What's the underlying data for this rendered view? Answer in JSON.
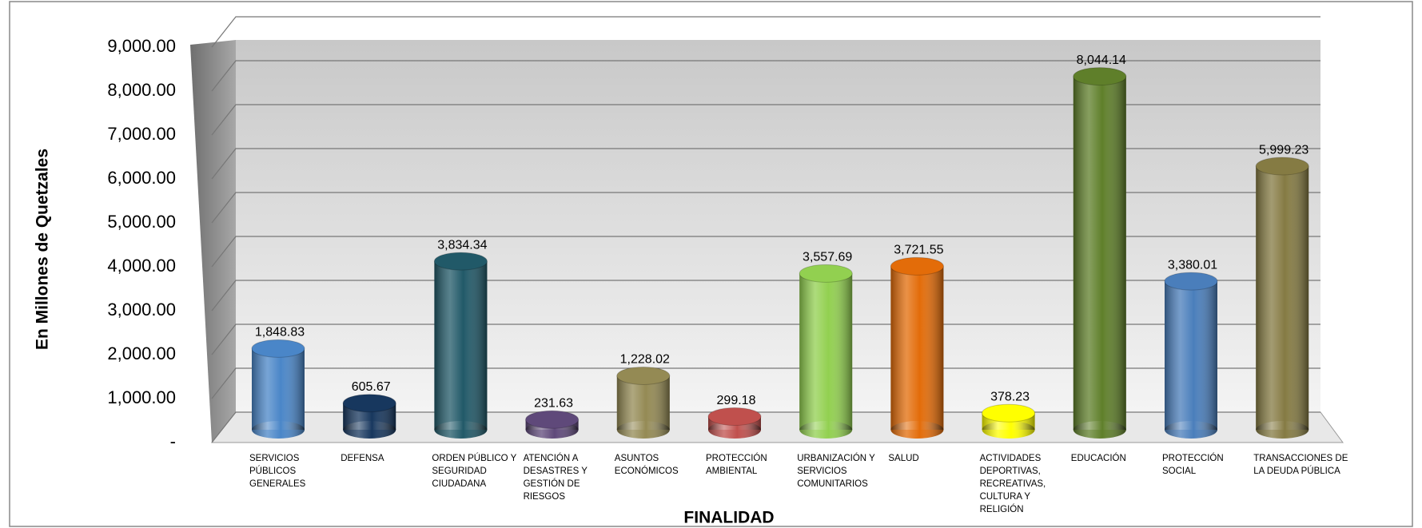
{
  "chart_data": {
    "type": "bar",
    "y_label": "En Millones de Quetzales",
    "x_label": "FINALIDAD",
    "categories": [
      "SERVICIOS PÚBLICOS GENERALES",
      "DEFENSA",
      "ORDEN PÚBLICO Y SEGURIDAD CIUDADANA",
      "ATENCIÓN A DESASTRES Y GESTIÓN DE RIESGOS",
      "ASUNTOS ECONÓMICOS",
      "PROTECCIÓN AMBIENTAL",
      "URBANIZACIÓN Y SERVICIOS COMUNITARIOS",
      "SALUD",
      "ACTIVIDADES DEPORTIVAS, RECREATIVAS, CULTURA Y RELIGIÓN",
      "EDUCACIÓN",
      "PROTECCIÓN SOCIAL",
      "TRANSACCIONES DE LA DEUDA PÚBLICA"
    ],
    "values": [
      1848.83,
      605.67,
      3834.34,
      231.63,
      1228.02,
      299.18,
      3557.69,
      3721.55,
      378.23,
      8044.14,
      3380.01,
      5999.23
    ],
    "value_labels": [
      "1,848.83",
      "605.67",
      "3,834.34",
      "231.63",
      "1,228.02",
      "299.18",
      "3,557.69",
      "3,721.55",
      "378.23",
      "8,044.14",
      "3,380.01",
      "5,999.23"
    ],
    "colors": [
      "#4a86c8",
      "#17375e",
      "#215968",
      "#5f497a",
      "#948a54",
      "#c0504d",
      "#92d050",
      "#e36c09",
      "#ffff00",
      "#5f7f2a",
      "#4a7ebb",
      "#857b43"
    ],
    "ylim": [
      0,
      9000
    ],
    "yticks": [
      {
        "value": 0,
        "label": "-"
      },
      {
        "value": 1000,
        "label": "1,000.00"
      },
      {
        "value": 2000,
        "label": "2,000.00"
      },
      {
        "value": 3000,
        "label": "3,000.00"
      },
      {
        "value": 4000,
        "label": "4,000.00"
      },
      {
        "value": 5000,
        "label": "5,000.00"
      },
      {
        "value": 6000,
        "label": "6,000.00"
      },
      {
        "value": 7000,
        "label": "7,000.00"
      },
      {
        "value": 8000,
        "label": "8,000.00"
      },
      {
        "value": 9000,
        "label": "9,000.00"
      }
    ],
    "grid": true
  }
}
